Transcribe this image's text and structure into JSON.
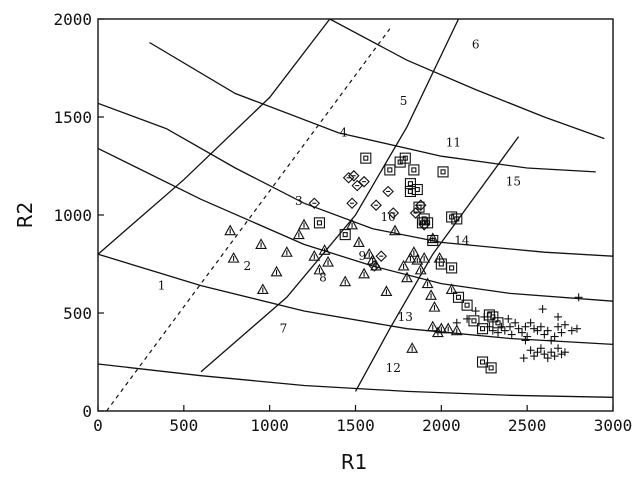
{
  "chart_data": {
    "type": "scatter",
    "title": "",
    "xlabel": "R1",
    "ylabel": "R2",
    "xlim": [
      0,
      3000
    ],
    "ylim": [
      0,
      2000
    ],
    "xticks": [
      0,
      500,
      1000,
      1500,
      2000,
      2500,
      3000
    ],
    "yticks": [
      0,
      500,
      1000,
      1500,
      2000
    ],
    "xtick_labels": [
      "0",
      "500",
      "1000",
      "1500",
      "2000",
      "2500",
      "3000"
    ],
    "ytick_labels": [
      "0",
      "500",
      "1000",
      "1500",
      "2000"
    ],
    "grid": false,
    "legend": "none",
    "dashed_line": [
      [
        50,
        0
      ],
      [
        1700,
        1950
      ]
    ],
    "curves": [
      [
        [
          0,
          240
        ],
        [
          600,
          180
        ],
        [
          1200,
          130
        ],
        [
          1800,
          100
        ],
        [
          2400,
          80
        ],
        [
          3000,
          70
        ]
      ],
      [
        [
          0,
          800
        ],
        [
          600,
          640
        ],
        [
          1200,
          510
        ],
        [
          1800,
          420
        ],
        [
          2400,
          370
        ],
        [
          3000,
          340
        ]
      ],
      [
        [
          0,
          1340
        ],
        [
          600,
          1080
        ],
        [
          1200,
          850
        ],
        [
          1600,
          740
        ],
        [
          2000,
          650
        ],
        [
          2400,
          600
        ],
        [
          3000,
          560
        ]
      ],
      [
        [
          0,
          1570
        ],
        [
          400,
          1440
        ],
        [
          800,
          1240
        ],
        [
          1200,
          1060
        ],
        [
          1600,
          930
        ],
        [
          2000,
          860
        ],
        [
          2600,
          810
        ],
        [
          3000,
          790
        ]
      ],
      [
        [
          300,
          1880
        ],
        [
          800,
          1620
        ],
        [
          1400,
          1420
        ],
        [
          2000,
          1300
        ],
        [
          2500,
          1240
        ],
        [
          2900,
          1220
        ]
      ],
      [
        [
          1350,
          2000
        ],
        [
          1800,
          1790
        ],
        [
          2200,
          1640
        ],
        [
          2600,
          1500
        ],
        [
          2950,
          1390
        ]
      ],
      [
        [
          0,
          800
        ],
        [
          500,
          1180
        ],
        [
          1000,
          1600
        ],
        [
          1350,
          2000
        ]
      ],
      [
        [
          600,
          200
        ],
        [
          1100,
          580
        ],
        [
          1500,
          1000
        ],
        [
          1800,
          1450
        ],
        [
          2100,
          2000
        ]
      ],
      [
        [
          1500,
          100
        ],
        [
          1700,
          420
        ],
        [
          1950,
          800
        ],
        [
          2200,
          1100
        ],
        [
          2450,
          1400
        ]
      ]
    ],
    "region_labels": [
      {
        "text": "1",
        "x": 370,
        "y": 620
      },
      {
        "text": "2",
        "x": 870,
        "y": 720
      },
      {
        "text": "3",
        "x": 1170,
        "y": 1050
      },
      {
        "text": "4",
        "x": 1430,
        "y": 1400
      },
      {
        "text": "5",
        "x": 1780,
        "y": 1560
      },
      {
        "text": "6",
        "x": 2200,
        "y": 1850
      },
      {
        "text": "7",
        "x": 1080,
        "y": 400
      },
      {
        "text": "8",
        "x": 1310,
        "y": 660
      },
      {
        "text": "9",
        "x": 1540,
        "y": 770
      },
      {
        "text": "10",
        "x": 1690,
        "y": 970
      },
      {
        "text": "11",
        "x": 2070,
        "y": 1350
      },
      {
        "text": "12",
        "x": 1720,
        "y": 200
      },
      {
        "text": "13",
        "x": 1790,
        "y": 460
      },
      {
        "text": "14",
        "x": 2120,
        "y": 850
      },
      {
        "text": "15",
        "x": 2420,
        "y": 1150
      }
    ],
    "series": [
      {
        "marker": "triangle",
        "points": [
          [
            770,
            920
          ],
          [
            790,
            780
          ],
          [
            950,
            850
          ],
          [
            960,
            620
          ],
          [
            1040,
            710
          ],
          [
            1100,
            810
          ],
          [
            1170,
            900
          ],
          [
            1200,
            950
          ],
          [
            1260,
            790
          ],
          [
            1290,
            720
          ],
          [
            1320,
            820
          ],
          [
            1340,
            760
          ],
          [
            1440,
            660
          ],
          [
            1480,
            950
          ],
          [
            1520,
            860
          ],
          [
            1550,
            700
          ],
          [
            1580,
            800
          ],
          [
            1600,
            770
          ],
          [
            1620,
            740
          ],
          [
            1680,
            610
          ],
          [
            1730,
            920
          ],
          [
            1780,
            740
          ],
          [
            1800,
            680
          ],
          [
            1820,
            780
          ],
          [
            1840,
            810
          ],
          [
            1860,
            770
          ],
          [
            1880,
            720
          ],
          [
            1900,
            780
          ],
          [
            1920,
            650
          ],
          [
            1940,
            590
          ],
          [
            1960,
            530
          ],
          [
            1950,
            430
          ],
          [
            1980,
            400
          ],
          [
            2000,
            420
          ],
          [
            2040,
            420
          ],
          [
            2060,
            620
          ],
          [
            2090,
            410
          ],
          [
            1830,
            320
          ],
          [
            1950,
            880
          ],
          [
            1990,
            780
          ]
        ]
      },
      {
        "marker": "diamond",
        "points": [
          [
            1260,
            1060
          ],
          [
            1460,
            1190
          ],
          [
            1490,
            1200
          ],
          [
            1510,
            1150
          ],
          [
            1550,
            1170
          ],
          [
            1480,
            1060
          ],
          [
            1620,
            1050
          ],
          [
            1690,
            1120
          ],
          [
            1720,
            1010
          ],
          [
            1850,
            1010
          ],
          [
            1880,
            1050
          ],
          [
            1900,
            950
          ],
          [
            1610,
            740
          ],
          [
            1650,
            790
          ]
        ]
      },
      {
        "marker": "square",
        "points": [
          [
            1290,
            960
          ],
          [
            1440,
            900
          ],
          [
            1560,
            1290
          ],
          [
            1700,
            1230
          ],
          [
            1760,
            1270
          ],
          [
            1790,
            1290
          ],
          [
            1820,
            1160
          ],
          [
            1820,
            1120
          ],
          [
            1840,
            1230
          ],
          [
            1860,
            1130
          ],
          [
            1870,
            1040
          ],
          [
            1890,
            960
          ],
          [
            1900,
            980
          ],
          [
            1920,
            960
          ],
          [
            1950,
            870
          ],
          [
            2010,
            1220
          ],
          [
            2060,
            990
          ],
          [
            2090,
            980
          ],
          [
            2000,
            750
          ],
          [
            2060,
            730
          ],
          [
            2100,
            580
          ],
          [
            2150,
            540
          ],
          [
            2190,
            460
          ],
          [
            2240,
            420
          ],
          [
            2280,
            490
          ],
          [
            2300,
            480
          ],
          [
            2240,
            250
          ],
          [
            2290,
            220
          ],
          [
            2330,
            450
          ]
        ]
      },
      {
        "marker": "plus",
        "points": [
          [
            2090,
            450
          ],
          [
            2150,
            470
          ],
          [
            2200,
            510
          ],
          [
            2250,
            480
          ],
          [
            2280,
            430
          ],
          [
            2300,
            410
          ],
          [
            2330,
            400
          ],
          [
            2350,
            430
          ],
          [
            2370,
            410
          ],
          [
            2390,
            470
          ],
          [
            2400,
            430
          ],
          [
            2410,
            390
          ],
          [
            2430,
            450
          ],
          [
            2450,
            420
          ],
          [
            2470,
            400
          ],
          [
            2490,
            430
          ],
          [
            2500,
            380
          ],
          [
            2520,
            450
          ],
          [
            2540,
            420
          ],
          [
            2560,
            410
          ],
          [
            2580,
            430
          ],
          [
            2600,
            390
          ],
          [
            2620,
            410
          ],
          [
            2640,
            360
          ],
          [
            2660,
            380
          ],
          [
            2680,
            430
          ],
          [
            2700,
            400
          ],
          [
            2720,
            440
          ],
          [
            2760,
            410
          ],
          [
            2790,
            420
          ],
          [
            2520,
            310
          ],
          [
            2540,
            280
          ],
          [
            2560,
            300
          ],
          [
            2580,
            320
          ],
          [
            2600,
            290
          ],
          [
            2620,
            270
          ],
          [
            2640,
            300
          ],
          [
            2660,
            280
          ],
          [
            2680,
            320
          ],
          [
            2700,
            290
          ],
          [
            2720,
            300
          ],
          [
            2480,
            270
          ],
          [
            2590,
            520
          ],
          [
            2680,
            480
          ],
          [
            2800,
            580
          ],
          [
            2490,
            360
          ]
        ]
      }
    ]
  }
}
